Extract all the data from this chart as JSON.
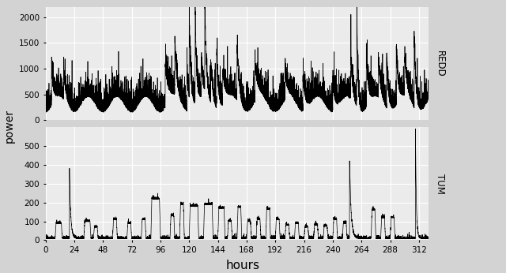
{
  "title": "",
  "xlabel": "hours",
  "ylabel": "power",
  "bg_color": "#EBEBEB",
  "strip_color": "#D3D3D3",
  "line_color": "#000000",
  "grid_color": "#FFFFFF",
  "redd_label": "REDD",
  "tum_label": "TUM",
  "x_ticks": [
    0,
    24,
    48,
    72,
    96,
    120,
    144,
    168,
    192,
    216,
    240,
    264,
    288,
    312
  ],
  "redd_ylim": [
    0,
    2200
  ],
  "redd_yticks": [
    0,
    500,
    1000,
    1500,
    2000
  ],
  "tum_ylim": [
    0,
    600
  ],
  "tum_yticks": [
    0,
    100,
    200,
    300,
    400,
    500
  ],
  "x_max": 320,
  "seed": 42
}
